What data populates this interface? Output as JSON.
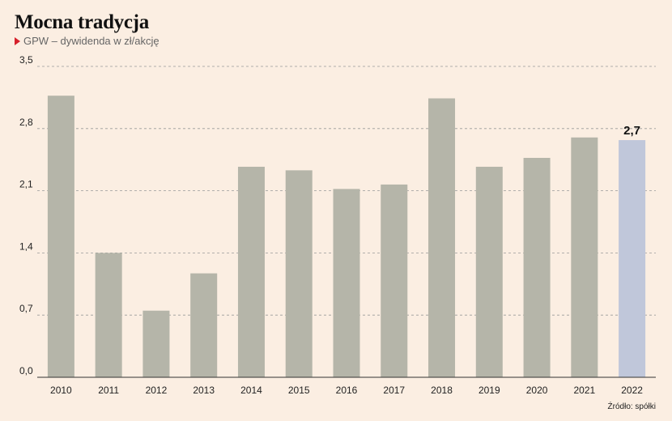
{
  "header": {
    "title": "Mocna tradycja",
    "subtitle": "GPW – dywidenda w zł/akcję"
  },
  "footer": {
    "source": "Źródło: spółki"
  },
  "colors": {
    "bar": "#b5b5a9",
    "highlight_bar": "#c0c7da",
    "grid": "#9a9a9a",
    "marker": "#d6202b",
    "background": "#fbeee2"
  },
  "chart_data": {
    "type": "bar",
    "title": "Mocna tradycja",
    "subtitle": "GPW – dywidenda w zł/akcję",
    "categories": [
      "2010",
      "2011",
      "2012",
      "2013",
      "2014",
      "2015",
      "2016",
      "2017",
      "2018",
      "2019",
      "2020",
      "2021",
      "2022"
    ],
    "values": [
      3.17,
      1.4,
      0.75,
      1.17,
      2.37,
      2.33,
      2.12,
      2.17,
      3.14,
      2.37,
      2.47,
      2.7,
      2.67
    ],
    "ylim": [
      0,
      3.5
    ],
    "yticks": [
      0,
      0.7,
      1.4,
      2.1,
      2.8,
      3.5
    ],
    "ytick_labels": [
      "0,0",
      "0,7",
      "1,4",
      "2,1",
      "2,8",
      "3,5"
    ],
    "grid": "horizontal dashed",
    "highlight_index": 12,
    "annotations": [
      {
        "category": "2022",
        "text": "2,7"
      }
    ]
  }
}
